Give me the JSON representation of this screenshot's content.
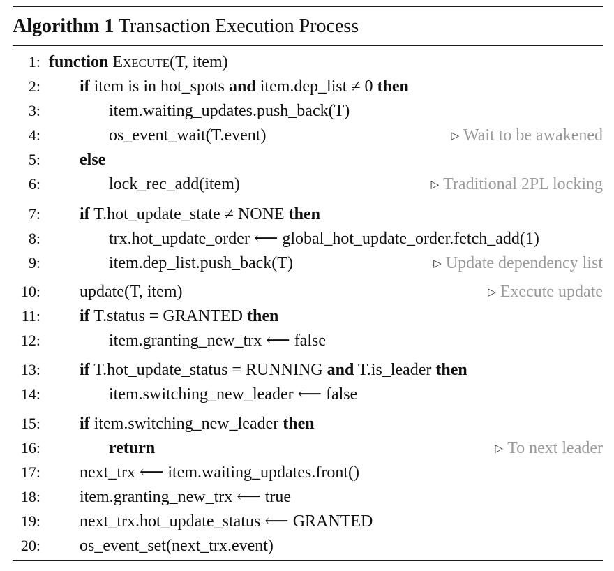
{
  "caption": {
    "label": "Algorithm 1",
    "title": "Transaction Execution Process"
  },
  "lines": [
    {
      "no": "1:",
      "parts": [
        {
          "t": "function",
          "kw": true
        },
        {
          "t": " "
        },
        {
          "t": "Execute",
          "sc": true
        },
        {
          "t": "(T, item)"
        }
      ],
      "comment": ""
    },
    {
      "no": "2:",
      "parts": [
        {
          "t": "if",
          "kw": true
        },
        {
          "t": " item is in hot_spots "
        },
        {
          "t": "and",
          "kw": true
        },
        {
          "t": " item.dep_list ≠ 0 "
        },
        {
          "t": "then",
          "kw": true
        }
      ],
      "comment": ""
    },
    {
      "no": "3:",
      "parts": [
        {
          "t": "item.waiting_updates.push_back(T)"
        }
      ],
      "comment": ""
    },
    {
      "no": "4:",
      "parts": [
        {
          "t": "os_event_wait(T.event)"
        }
      ],
      "comment": "Wait to be awakened"
    },
    {
      "no": "5:",
      "parts": [
        {
          "t": "else",
          "kw": true
        }
      ],
      "comment": ""
    },
    {
      "no": "6:",
      "parts": [
        {
          "t": "lock_rec_add(item)"
        }
      ],
      "comment": "Traditional 2PL locking"
    },
    {
      "no": "7:",
      "parts": [
        {
          "t": "if",
          "kw": true
        },
        {
          "t": " T.hot_update_state ≠ NONE "
        },
        {
          "t": "then",
          "kw": true
        }
      ],
      "comment": ""
    },
    {
      "no": "8:",
      "parts": [
        {
          "t": "trx.hot_update_order ⟵ global_hot_update_order.fetch_add(1)"
        }
      ],
      "comment": ""
    },
    {
      "no": "9:",
      "parts": [
        {
          "t": "item.dep_list.push_back(T)"
        }
      ],
      "comment": "Update dependency list"
    },
    {
      "no": "10:",
      "parts": [
        {
          "t": "update(T, item)"
        }
      ],
      "comment": "Execute update"
    },
    {
      "no": "11:",
      "parts": [
        {
          "t": "if",
          "kw": true
        },
        {
          "t": " T.status = GRANTED "
        },
        {
          "t": "then",
          "kw": true
        }
      ],
      "comment": ""
    },
    {
      "no": "12:",
      "parts": [
        {
          "t": "item.granting_new_trx ⟵ false"
        }
      ],
      "comment": ""
    },
    {
      "no": "13:",
      "parts": [
        {
          "t": "if",
          "kw": true
        },
        {
          "t": " T.hot_update_status = RUNNING "
        },
        {
          "t": "and",
          "kw": true
        },
        {
          "t": " T.is_leader "
        },
        {
          "t": "then",
          "kw": true
        }
      ],
      "comment": ""
    },
    {
      "no": "14:",
      "parts": [
        {
          "t": "item.switching_new_leader ⟵ false"
        }
      ],
      "comment": ""
    },
    {
      "no": "15:",
      "parts": [
        {
          "t": "if",
          "kw": true
        },
        {
          "t": " item.switching_new_leader "
        },
        {
          "t": "then",
          "kw": true
        }
      ],
      "comment": ""
    },
    {
      "no": "16:",
      "parts": [
        {
          "t": "return",
          "kw": true
        }
      ],
      "comment": "To next leader"
    },
    {
      "no": "17:",
      "parts": [
        {
          "t": "next_trx ⟵ item.waiting_updates.front()"
        }
      ],
      "comment": ""
    },
    {
      "no": "18:",
      "parts": [
        {
          "t": "item.granting_new_trx ⟵ true"
        }
      ],
      "comment": ""
    },
    {
      "no": "19:",
      "parts": [
        {
          "t": "next_trx.hot_update_status ⟵ GRANTED"
        }
      ],
      "comment": ""
    },
    {
      "no": "20:",
      "parts": [
        {
          "t": "os_event_set(next_trx.event)"
        }
      ],
      "comment": ""
    }
  ],
  "icons": {
    "comment_marker": "triangle-right-icon"
  }
}
